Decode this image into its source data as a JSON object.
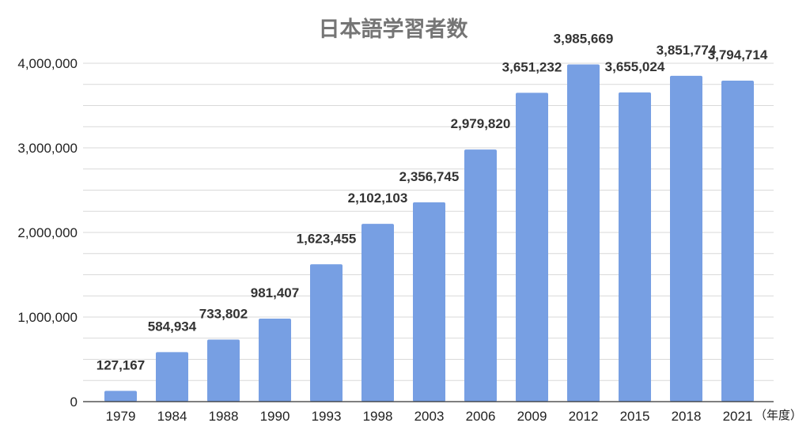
{
  "chart_data": {
    "type": "bar",
    "title": "日本語学習者数",
    "xlabel": "（年度）",
    "ylabel": "",
    "categories": [
      "1979",
      "1984",
      "1988",
      "1990",
      "1993",
      "1998",
      "2003",
      "2006",
      "2009",
      "2012",
      "2015",
      "2018",
      "2021"
    ],
    "values": [
      127167,
      584934,
      733802,
      981407,
      1623455,
      2102103,
      2356745,
      2979820,
      3651232,
      3985669,
      3655024,
      3851774,
      3794714
    ],
    "data_labels": [
      "127,167",
      "584,934",
      "733,802",
      "981,407",
      "1,623,455",
      "2,102,103",
      "2,356,745",
      "2,979,820",
      "3,651,232",
      "3,985,669",
      "3,655,024",
      "3,851,774",
      "3,794,714"
    ],
    "ylim": [
      0,
      4000000
    ],
    "yticks": [
      0,
      1000000,
      2000000,
      3000000,
      4000000
    ],
    "ytick_labels": [
      "0",
      "1,000,000",
      "2,000,000",
      "3,000,000",
      "4,000,000"
    ],
    "grid": true,
    "bar_color": "#779fe3"
  }
}
